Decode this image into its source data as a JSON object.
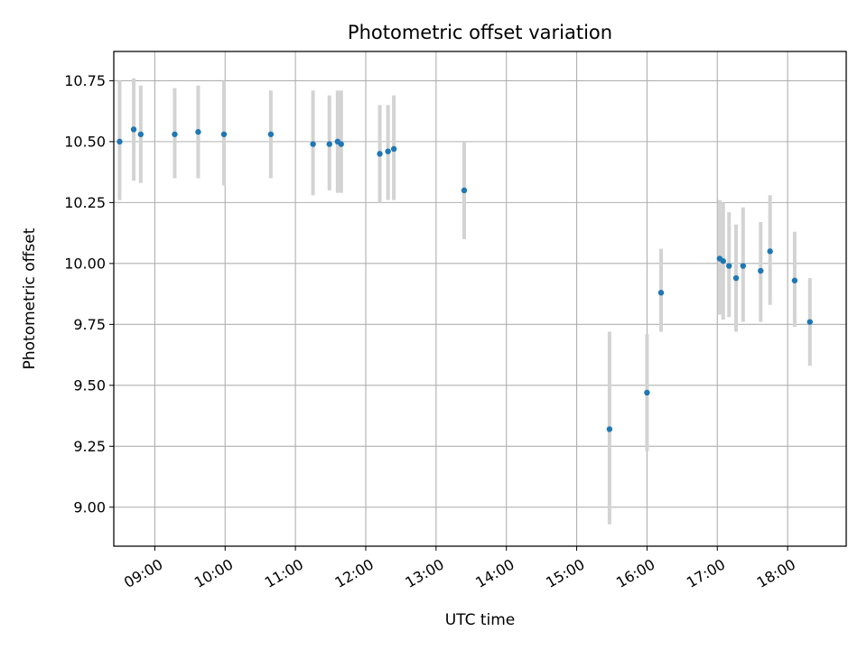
{
  "chart_data": {
    "type": "scatter",
    "title": "Photometric offset variation",
    "xlabel": "UTC time",
    "ylabel": "Photometric offset",
    "xlim": [
      "08:25",
      "18:50"
    ],
    "ylim": [
      8.84,
      10.87
    ],
    "grid": true,
    "x_ticks": [
      "09:00",
      "10:00",
      "11:00",
      "12:00",
      "13:00",
      "14:00",
      "15:00",
      "16:00",
      "17:00",
      "18:00"
    ],
    "y_ticks": [
      9.0,
      9.25,
      9.5,
      9.75,
      10.0,
      10.25,
      10.5,
      10.75
    ],
    "colors": {
      "point": "#1f77b4",
      "errorbar": "#d3d3d3",
      "grid": "#b0b0b0"
    },
    "series": [
      {
        "points": [
          {
            "t": "08:30",
            "y": 10.5,
            "lo": 10.26,
            "hi": 10.75
          },
          {
            "t": "08:42",
            "y": 10.55,
            "lo": 10.34,
            "hi": 10.76
          },
          {
            "t": "08:48",
            "y": 10.53,
            "lo": 10.33,
            "hi": 10.73
          },
          {
            "t": "09:17",
            "y": 10.53,
            "lo": 10.35,
            "hi": 10.72
          },
          {
            "t": "09:37",
            "y": 10.54,
            "lo": 10.35,
            "hi": 10.73
          },
          {
            "t": "09:59",
            "y": 10.53,
            "lo": 10.32,
            "hi": 10.75
          },
          {
            "t": "10:39",
            "y": 10.53,
            "lo": 10.35,
            "hi": 10.71
          },
          {
            "t": "11:15",
            "y": 10.49,
            "lo": 10.28,
            "hi": 10.71
          },
          {
            "t": "11:29",
            "y": 10.49,
            "lo": 10.3,
            "hi": 10.69
          },
          {
            "t": "11:36",
            "y": 10.5,
            "lo": 10.29,
            "hi": 10.71
          },
          {
            "t": "11:39",
            "y": 10.49,
            "lo": 10.29,
            "hi": 10.71
          },
          {
            "t": "12:12",
            "y": 10.45,
            "lo": 10.25,
            "hi": 10.65
          },
          {
            "t": "12:19",
            "y": 10.46,
            "lo": 10.26,
            "hi": 10.65
          },
          {
            "t": "12:24",
            "y": 10.47,
            "lo": 10.26,
            "hi": 10.69
          },
          {
            "t": "13:24",
            "y": 10.3,
            "lo": 10.1,
            "hi": 10.5
          },
          {
            "t": "15:28",
            "y": 9.32,
            "lo": 8.93,
            "hi": 9.72
          },
          {
            "t": "16:00",
            "y": 9.47,
            "lo": 9.23,
            "hi": 9.71
          },
          {
            "t": "16:12",
            "y": 9.88,
            "lo": 9.72,
            "hi": 10.06
          },
          {
            "t": "17:02",
            "y": 10.02,
            "lo": 9.79,
            "hi": 10.26
          },
          {
            "t": "17:05",
            "y": 10.01,
            "lo": 9.77,
            "hi": 10.25
          },
          {
            "t": "17:10",
            "y": 9.99,
            "lo": 9.78,
            "hi": 10.21
          },
          {
            "t": "17:16",
            "y": 9.94,
            "lo": 9.72,
            "hi": 10.16
          },
          {
            "t": "17:22",
            "y": 9.99,
            "lo": 9.76,
            "hi": 10.23
          },
          {
            "t": "17:37",
            "y": 9.97,
            "lo": 9.76,
            "hi": 10.17
          },
          {
            "t": "17:45",
            "y": 10.05,
            "lo": 9.83,
            "hi": 10.28
          },
          {
            "t": "18:06",
            "y": 9.93,
            "lo": 9.74,
            "hi": 10.13
          },
          {
            "t": "18:19",
            "y": 9.76,
            "lo": 9.58,
            "hi": 9.94
          }
        ]
      }
    ]
  }
}
